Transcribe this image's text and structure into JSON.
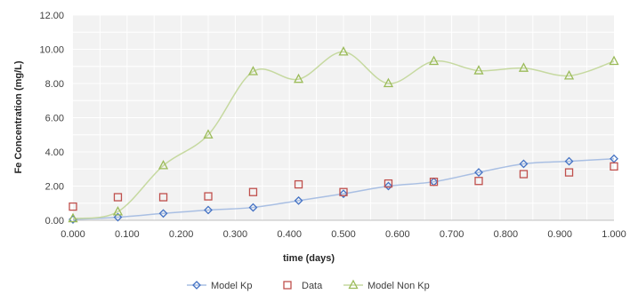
{
  "chart_data": {
    "type": "line",
    "xlabel": "time (days)",
    "ylabel": "Fe Concentration (mg/L)",
    "xlim": [
      0,
      1
    ],
    "ylim": [
      0,
      12
    ],
    "x_ticks": [
      "0.000",
      "0.100",
      "0.200",
      "0.300",
      "0.400",
      "0.500",
      "0.600",
      "0.700",
      "0.800",
      "0.900",
      "1.000"
    ],
    "y_ticks": [
      "0.00",
      "2.00",
      "4.00",
      "6.00",
      "8.00",
      "10.00",
      "12.00"
    ],
    "grid": true,
    "legend_position": "bottom",
    "x": [
      0,
      0.083,
      0.167,
      0.25,
      0.333,
      0.417,
      0.5,
      0.583,
      0.667,
      0.75,
      0.833,
      0.917,
      1.0
    ],
    "series": [
      {
        "name": "Model Kp",
        "marker": "diamond",
        "line": true,
        "color": "#4472C4",
        "line_color": "#A9BFE3",
        "values": [
          0.05,
          0.18,
          0.4,
          0.6,
          0.75,
          1.15,
          1.55,
          2.0,
          2.25,
          2.8,
          3.3,
          3.45,
          3.6
        ]
      },
      {
        "name": "Data",
        "marker": "square",
        "line": false,
        "color": "#C0504D",
        "values": [
          0.8,
          1.35,
          1.35,
          1.4,
          1.65,
          2.1,
          1.65,
          2.15,
          2.25,
          2.3,
          2.7,
          2.8,
          3.15
        ]
      },
      {
        "name": "Model Non Kp",
        "marker": "triangle",
        "line": true,
        "color": "#9BBB59",
        "line_color": "#C6D9A0",
        "values": [
          0.1,
          0.5,
          3.2,
          5.0,
          8.7,
          8.25,
          9.85,
          8.0,
          9.3,
          8.75,
          8.9,
          8.45,
          9.3
        ]
      }
    ]
  }
}
